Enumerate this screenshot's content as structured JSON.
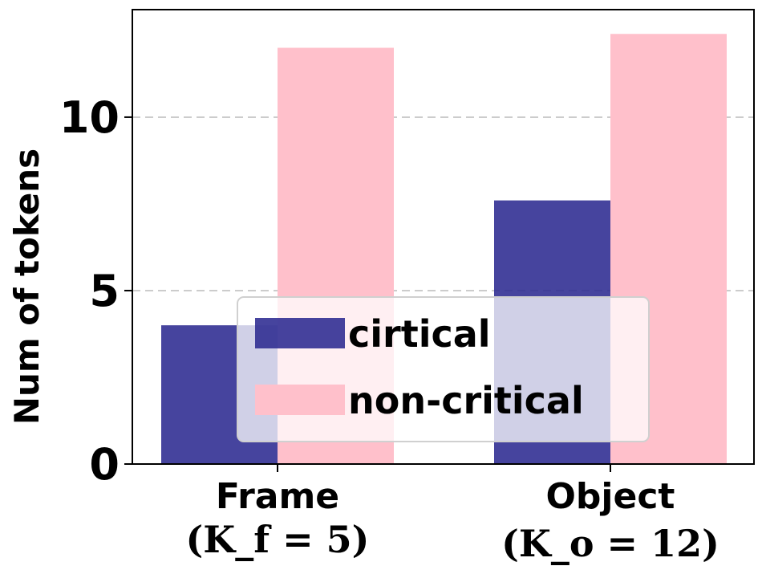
{
  "chart_data": {
    "type": "bar",
    "categories": [
      "Frame",
      "Object"
    ],
    "category_sublabels": [
      "(K_f = 5)",
      "(K_o = 12)"
    ],
    "series": [
      {
        "name": "cirtical",
        "values": [
          4.0,
          7.6
        ],
        "color": "#2c2a91"
      },
      {
        "name": "non-critical",
        "values": [
          12.0,
          12.4
        ],
        "color": "#ffc0cb"
      }
    ],
    "xlabel": "",
    "ylabel": "Num of tokens",
    "ylim": [
      0,
      13.1
    ],
    "yticks": [
      0,
      5,
      10
    ],
    "grid": "horizontal dashed",
    "legend_placement": "bottom-center"
  }
}
